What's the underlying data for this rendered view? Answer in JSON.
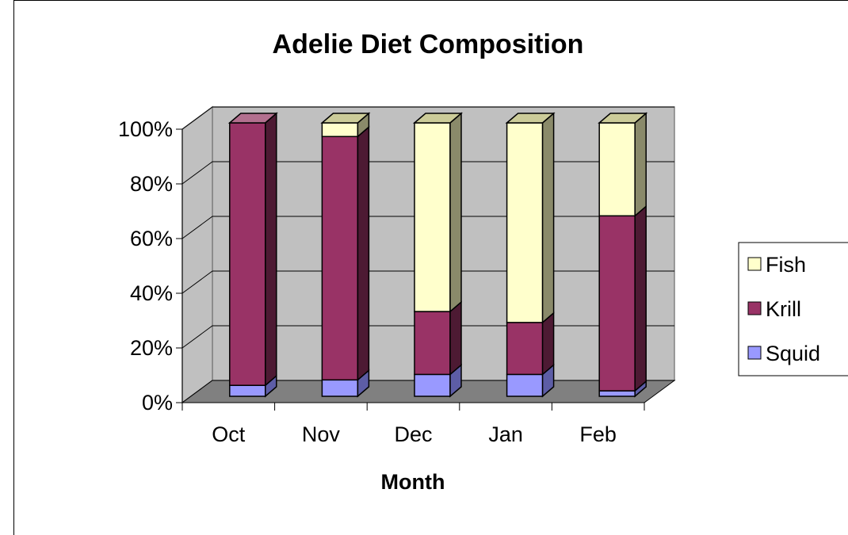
{
  "chart_data": {
    "type": "bar",
    "stacked": true,
    "percent": true,
    "title": "Adelie Diet Composition",
    "xlabel": "Month",
    "ylabel": "",
    "categories": [
      "Oct",
      "Nov",
      "Dec",
      "Jan",
      "Feb"
    ],
    "series": [
      {
        "name": "Squid",
        "values": [
          4,
          6,
          8,
          8,
          2
        ],
        "color": "#9999FF",
        "side_color": "#5D5DA6",
        "top_color": "#B3B3FF"
      },
      {
        "name": "Krill",
        "values": [
          96,
          89,
          23,
          19,
          64
        ],
        "color": "#993366",
        "side_color": "#4D1A33",
        "top_color": "#B3708F"
      },
      {
        "name": "Fish",
        "values": [
          0,
          5,
          69,
          73,
          34
        ],
        "color": "#FFFFCC",
        "side_color": "#8A8A6A",
        "top_color": "#CCCC99"
      }
    ],
    "yticks": [
      "0%",
      "20%",
      "40%",
      "60%",
      "80%",
      "100%"
    ],
    "ylim": [
      0,
      100
    ],
    "grid": true,
    "legend": "right",
    "wall_color": "#C0C0C0",
    "floor_color": "#808080"
  }
}
